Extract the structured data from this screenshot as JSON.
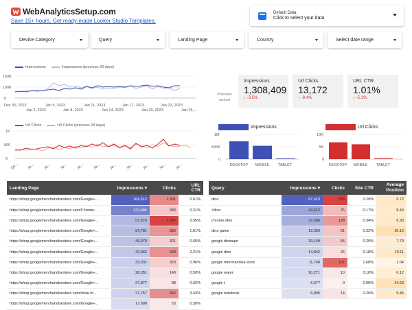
{
  "header": {
    "logo_text": "WebAnalyticsSetup.com",
    "promo_link": "Save 15+ hours. Get ready-made Looker Studio Templates."
  },
  "data_source": {
    "label": "Default Data",
    "value": "Click to select your data"
  },
  "filters": [
    "Device Category",
    "Query",
    "Landing Page",
    "Country",
    "Select date range"
  ],
  "impressions_chart": {
    "legend": [
      "Impressions",
      "Impressions (previous 28 days)"
    ],
    "y_ticks": [
      "150K",
      "100K",
      "50K",
      "0"
    ],
    "x_ticks": [
      "Dec 30, 2022",
      "Jan 2, 2023",
      "Jan 5, 2023",
      "Jan 8, 2023",
      "Jan 11, 2023",
      "Jan 14, 2023",
      "Jan 17, 2023",
      "Jan 20, 2023",
      "Jan 23, 2023",
      "Jan 26,..."
    ]
  },
  "clicks_chart": {
    "legend": [
      "Url Clicks",
      "Url Clicks (previous 28 days)"
    ],
    "y_ticks": [
      "1K",
      "500",
      "0"
    ],
    "x_ticks": [
      "De...",
      "Ja...",
      "Ja...",
      "Ja...",
      "Ja...",
      "Ja...",
      "Ja...",
      "Ja...",
      "Ja...",
      "Ja...",
      "Ja..."
    ]
  },
  "scorecards": {
    "prev_label": "Previous period",
    "items": [
      {
        "label": "Impressions",
        "value": "1,308,409",
        "delta": "-3.5%"
      },
      {
        "label": "Url Clicks",
        "value": "13,172",
        "delta": "-8.4%"
      },
      {
        "label": "URL CTR",
        "value": "1.01%",
        "delta": "-5.1%"
      }
    ]
  },
  "device_impressions": {
    "legend": "Impressions",
    "y_ticks": [
      "1M",
      "500K",
      "0"
    ],
    "categories": [
      "DESKTOP",
      "MOBILE",
      "TABLET"
    ],
    "values": [
      720000,
      540000,
      25000
    ],
    "color": "#3f51b5"
  },
  "device_clicks": {
    "legend": "Url Clicks",
    "y_ticks": [
      "10K",
      "5K",
      "0"
    ],
    "categories": [
      "DESKTOP",
      "MOBILE",
      "TABLET"
    ],
    "values": [
      6800,
      6000,
      300
    ],
    "color": "#d32f2f"
  },
  "landing_table": {
    "headers": [
      "Landing Page",
      "Impressions ▾",
      "Clicks",
      "URL CTR"
    ],
    "rows": [
      [
        "https://shop.googlemerchandisestore.com/Google+...",
        "164,512",
        "1,001",
        "0.61%"
      ],
      [
        "https://shop.googlemerchandisestore.com/Chrome...",
        "123,486",
        "383",
        "0.31%"
      ],
      [
        "https://shop.googlemerchandisestore.com/Google+...",
        "57,576",
        "1,697",
        "2.95%"
      ],
      [
        "https://shop.googlemerchandisestore.com/Google+...",
        "54,781",
        "883",
        "1.61%"
      ],
      [
        "https://shop.googlemerchandisestore.com/Google+...",
        "49,079",
        "321",
        "0.65%"
      ],
      [
        "https://shop.googlemerchandisestore.com/Google+...",
        "42,062",
        "928",
        "2.21%"
      ],
      [
        "https://shop.googlemerchandisestore.com/Google+...",
        "33,331",
        "320",
        "0.96%"
      ],
      [
        "https://shop.googlemerchandisestore.com/Google+...",
        "28,051",
        "140",
        "0.50%"
      ],
      [
        "https://shop.googlemerchandisestore.com/Google+...",
        "27,877",
        "88",
        "0.32%"
      ],
      [
        "https://shop.googlemerchandisestore.com/store.ht...",
        "27,757",
        "952",
        "3.43%"
      ],
      [
        "https://shop.googlemerchandisestore.com/Google+...",
        "17,698",
        "53",
        "0.30%"
      ]
    ]
  },
  "query_table": {
    "headers": [
      "Query",
      "Impressions ▾",
      "Clicks",
      "Site CTR",
      "Average Position"
    ],
    "rows": [
      [
        "dino",
        "87,419",
        "253",
        "0.29%",
        "9.72"
      ],
      [
        "//dino",
        "43,612",
        "75",
        "0.17%",
        "8.40"
      ],
      [
        "chrome dino",
        "37,606",
        "128",
        "0.34%",
        "9.30"
      ],
      [
        "dino game",
        "19,359",
        "61",
        "0.32%",
        "16.16"
      ],
      [
        "google dinosaur",
        "19,149",
        "55",
        "0.29%",
        "7.79"
      ],
      [
        "google dino",
        "14,842",
        "26",
        "0.18%",
        "10.11"
      ],
      [
        "google merchandise store",
        "11,748",
        "197",
        "1.68%",
        "1.04"
      ],
      [
        "google water",
        "10,271",
        "10",
        "0.10%",
        "6.12"
      ],
      [
        "google t",
        "6,977",
        "0",
        "0.00%",
        "14.53"
      ],
      [
        "google notebook",
        "6,895",
        "14",
        "0.20%",
        "9.45"
      ]
    ]
  },
  "colors": {
    "impr_blue": "#3f51b5",
    "click_red": "#d32f2f",
    "header_gray": "#4a4a4a"
  }
}
